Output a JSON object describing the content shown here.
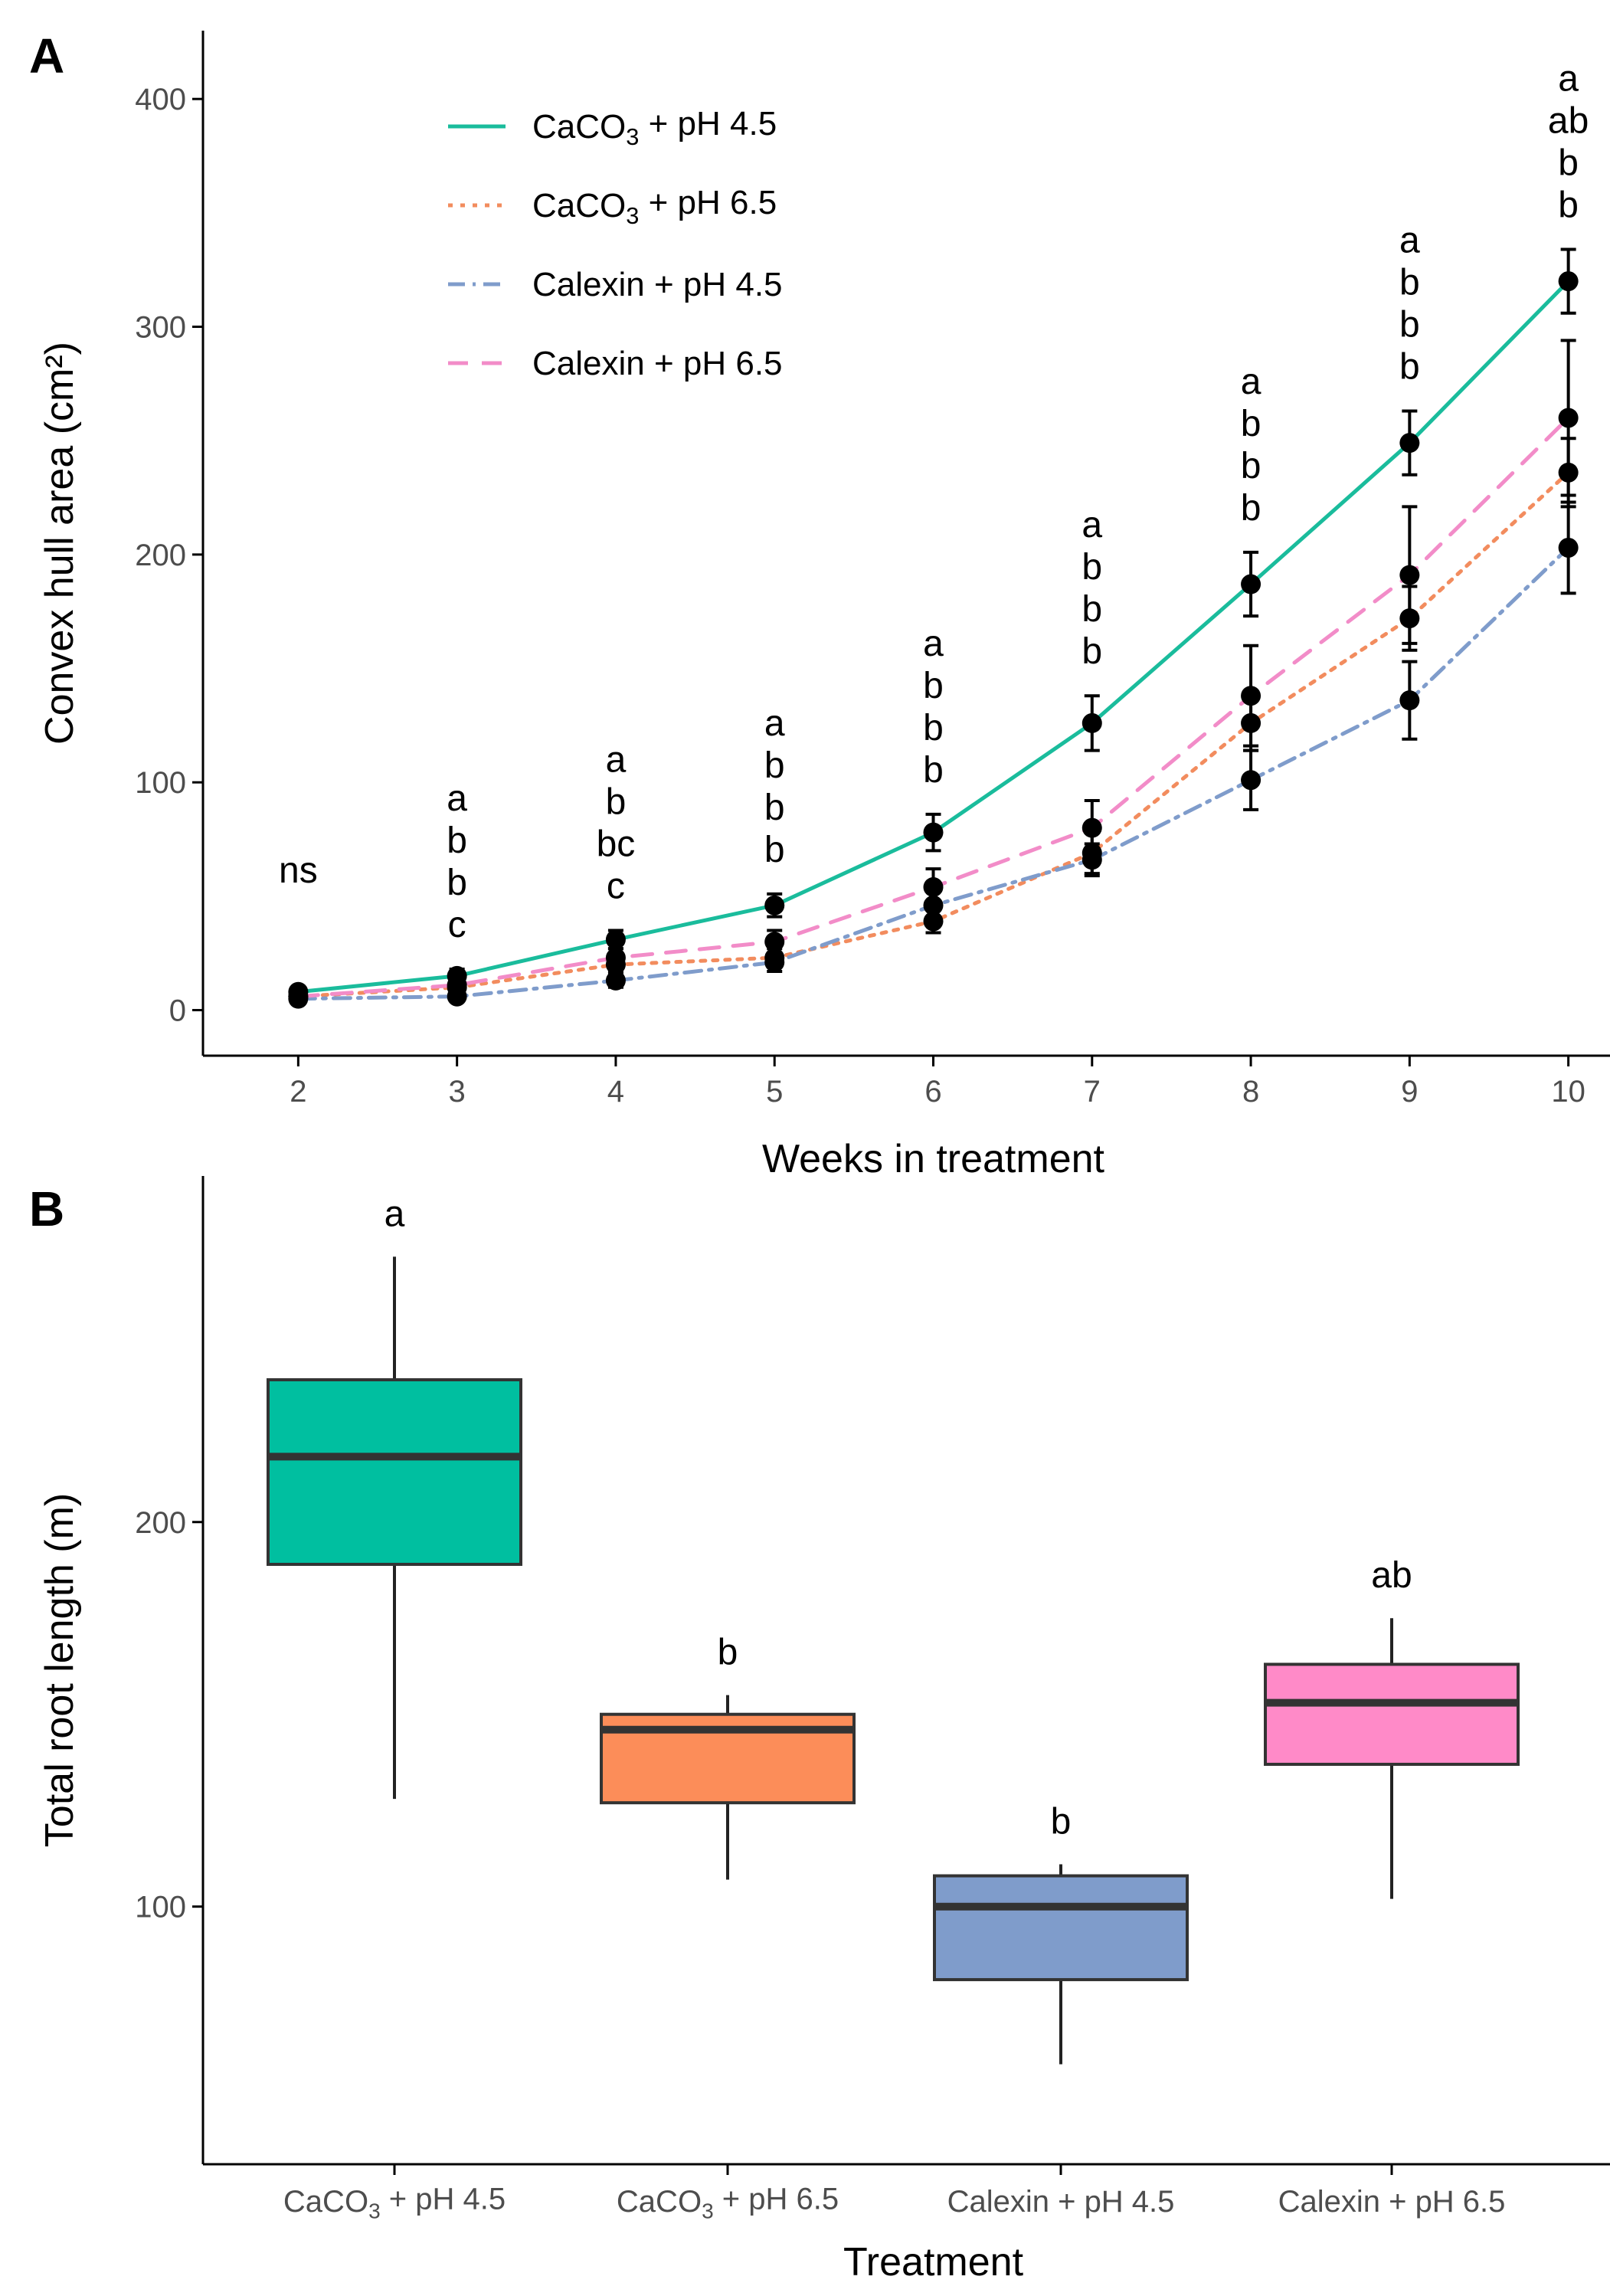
{
  "chart_data": [
    {
      "panel": "A",
      "type": "line",
      "xlabel": "Weeks in treatment",
      "ylabel": "Convex hull area (cm²)",
      "x": [
        2,
        3,
        4,
        5,
        6,
        7,
        8,
        9,
        10
      ],
      "xlim": [
        1.4,
        10.6
      ],
      "ylim": [
        -20,
        430
      ],
      "yticks": [
        0,
        100,
        200,
        300,
        400
      ],
      "xticks": [
        2,
        3,
        4,
        5,
        6,
        7,
        8,
        9,
        10
      ],
      "series": [
        {
          "name": "CaCO₃ + pH 4.5",
          "color": "#1ABC9C",
          "dash": "solid",
          "values": [
            8,
            15,
            31,
            46,
            78,
            126,
            187,
            249,
            320
          ],
          "errors": [
            2,
            3,
            4,
            5,
            8,
            12,
            14,
            14,
            14
          ]
        },
        {
          "name": "CaCO₃ + pH 6.5",
          "color": "#F28C5E",
          "dash": "dotted",
          "values": [
            6,
            10,
            20,
            23,
            39,
            69,
            126,
            172,
            236
          ],
          "errors": [
            2,
            2,
            3,
            4,
            5,
            9,
            12,
            14,
            15
          ]
        },
        {
          "name": "Calexin + pH 4.5",
          "color": "#7F9CCB",
          "dash": "dashdot",
          "values": [
            5,
            6,
            13,
            21,
            46,
            66,
            101,
            136,
            203
          ],
          "errors": [
            1,
            2,
            3,
            4,
            6,
            7,
            13,
            17,
            20
          ]
        },
        {
          "name": "Calexin + pH 6.5",
          "color": "#F28CC8",
          "dash": "dashed",
          "values": [
            6,
            11,
            23,
            30,
            54,
            80,
            138,
            191,
            260
          ],
          "errors": [
            2,
            3,
            4,
            5,
            8,
            12,
            22,
            30,
            34
          ]
        }
      ],
      "annotations": [
        {
          "x": 2,
          "labels": [
            "ns"
          ]
        },
        {
          "x": 3,
          "labels": [
            "a",
            "b",
            "b",
            "c"
          ]
        },
        {
          "x": 4,
          "labels": [
            "a",
            "b",
            "bc",
            "c"
          ]
        },
        {
          "x": 5,
          "labels": [
            "a",
            "b",
            "b",
            "b"
          ]
        },
        {
          "x": 6,
          "labels": [
            "a",
            "b",
            "b",
            "b"
          ]
        },
        {
          "x": 7,
          "labels": [
            "a",
            "b",
            "b",
            "b"
          ]
        },
        {
          "x": 8,
          "labels": [
            "a",
            "b",
            "b",
            "b"
          ]
        },
        {
          "x": 9,
          "labels": [
            "a",
            "b",
            "b",
            "b"
          ]
        },
        {
          "x": 10,
          "labels": [
            "a",
            "ab",
            "b",
            "b"
          ]
        }
      ],
      "legend_position": "top-left"
    },
    {
      "panel": "B",
      "type": "box",
      "xlabel": "Treatment",
      "ylabel": "Total root length (m)",
      "ylim": [
        33,
        290
      ],
      "yticks": [
        100,
        200
      ],
      "categories": [
        "CaCO₃ + pH 4.5",
        "CaCO₃ + pH 6.5",
        "Calexin + pH 4.5",
        "Calexin + pH 6.5"
      ],
      "boxes": [
        {
          "min": 128,
          "q1": 189,
          "median": 217,
          "q3": 237,
          "max": 269,
          "color": "#00BFA0",
          "label": "a"
        },
        {
          "min": 107,
          "q1": 127,
          "median": 146,
          "q3": 150,
          "max": 155,
          "color": "#FC8D59",
          "label": "b"
        },
        {
          "min": 59,
          "q1": 81,
          "median": 100,
          "q3": 108,
          "max": 111,
          "color": "#7F9CCB",
          "label": "b"
        },
        {
          "min": 102,
          "q1": 137,
          "median": 153,
          "q3": 163,
          "max": 175,
          "color": "#FF8AC8",
          "label": "ab"
        }
      ]
    }
  ],
  "panel_labels": [
    "A",
    "B"
  ]
}
